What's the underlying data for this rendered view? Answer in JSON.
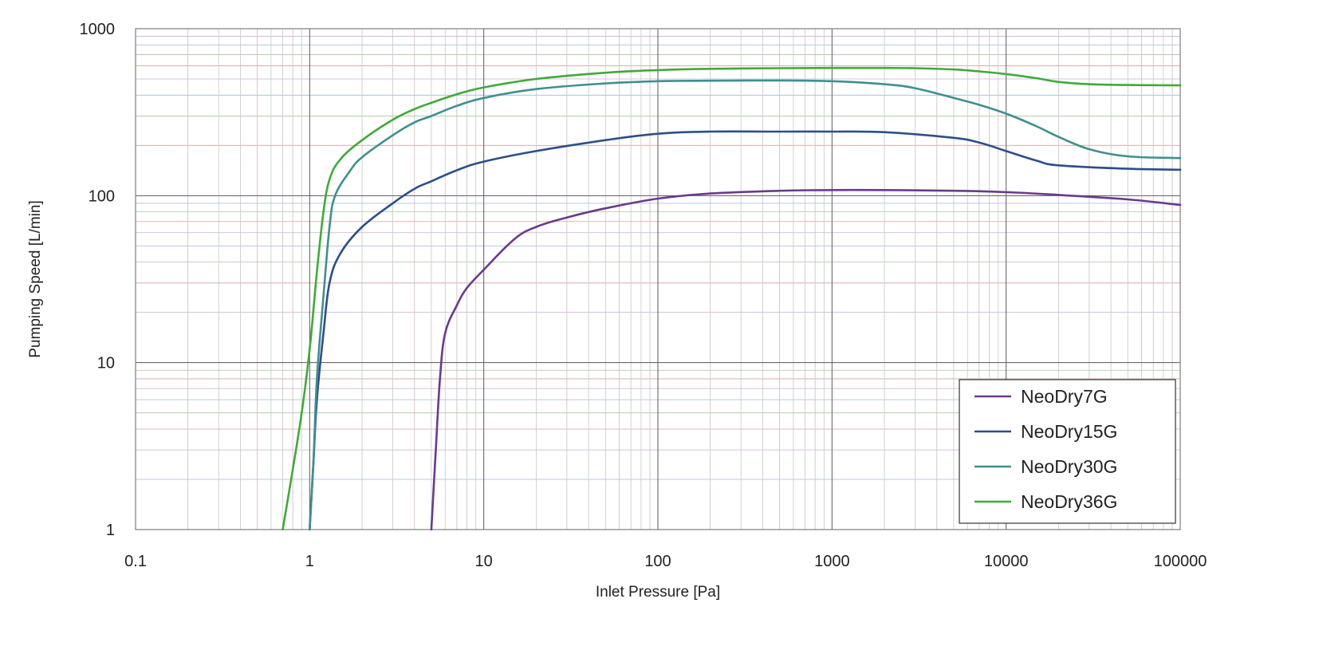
{
  "chart_data": {
    "type": "line",
    "title": "",
    "xlabel": "Inlet Pressure [Pa]",
    "ylabel": "Pumping Speed [L/min]",
    "x_scale": "log",
    "y_scale": "log",
    "xlim": [
      0.1,
      100000
    ],
    "ylim": [
      1,
      1000
    ],
    "x_ticks": [
      "0.1",
      "1",
      "10",
      "100",
      "1000",
      "10000",
      "100000"
    ],
    "y_ticks": [
      "1",
      "10",
      "100",
      "1000"
    ],
    "grid": true,
    "legend_position": "bottom-right",
    "series": [
      {
        "name": "NeoDry7G",
        "color": "#6a3a8c",
        "points": [
          [
            5,
            1
          ],
          [
            5.3,
            3
          ],
          [
            5.6,
            8
          ],
          [
            6,
            15
          ],
          [
            7,
            22
          ],
          [
            8,
            28
          ],
          [
            10,
            36
          ],
          [
            15,
            55
          ],
          [
            20,
            65
          ],
          [
            30,
            74
          ],
          [
            50,
            84
          ],
          [
            100,
            96
          ],
          [
            200,
            103
          ],
          [
            500,
            107
          ],
          [
            1000,
            108
          ],
          [
            2000,
            108
          ],
          [
            5000,
            107
          ],
          [
            10000,
            105
          ],
          [
            20000,
            101
          ],
          [
            50000,
            95
          ],
          [
            100000,
            88
          ]
        ]
      },
      {
        "name": "NeoDry15G",
        "color": "#2d4e8c",
        "points": [
          [
            1,
            1
          ],
          [
            1.05,
            2.5
          ],
          [
            1.1,
            6
          ],
          [
            1.2,
            15
          ],
          [
            1.3,
            30
          ],
          [
            1.5,
            45
          ],
          [
            2,
            65
          ],
          [
            3,
            90
          ],
          [
            4,
            110
          ],
          [
            5,
            122
          ],
          [
            7,
            142
          ],
          [
            10,
            160
          ],
          [
            20,
            185
          ],
          [
            50,
            215
          ],
          [
            100,
            235
          ],
          [
            200,
            242
          ],
          [
            500,
            242
          ],
          [
            1000,
            242
          ],
          [
            2000,
            240
          ],
          [
            5000,
            222
          ],
          [
            7000,
            208
          ],
          [
            10000,
            185
          ],
          [
            15000,
            162
          ],
          [
            20000,
            152
          ],
          [
            50000,
            145
          ],
          [
            100000,
            143
          ]
        ]
      },
      {
        "name": "NeoDry30G",
        "color": "#3f8f8f",
        "points": [
          [
            1,
            1
          ],
          [
            1.05,
            2.5
          ],
          [
            1.1,
            8
          ],
          [
            1.2,
            25
          ],
          [
            1.3,
            65
          ],
          [
            1.4,
            100
          ],
          [
            1.7,
            140
          ],
          [
            2,
            170
          ],
          [
            3,
            230
          ],
          [
            4,
            275
          ],
          [
            5,
            300
          ],
          [
            7,
            345
          ],
          [
            10,
            385
          ],
          [
            20,
            435
          ],
          [
            50,
            470
          ],
          [
            100,
            485
          ],
          [
            200,
            488
          ],
          [
            500,
            490
          ],
          [
            1000,
            485
          ],
          [
            2000,
            465
          ],
          [
            3000,
            440
          ],
          [
            5000,
            385
          ],
          [
            7000,
            350
          ],
          [
            10000,
            310
          ],
          [
            15000,
            260
          ],
          [
            20000,
            225
          ],
          [
            30000,
            190
          ],
          [
            50000,
            172
          ],
          [
            100000,
            168
          ]
        ]
      },
      {
        "name": "NeoDry36G",
        "color": "#3faa3a",
        "points": [
          [
            0.7,
            1
          ],
          [
            0.8,
            2.3
          ],
          [
            0.9,
            5
          ],
          [
            1,
            12
          ],
          [
            1.1,
            35
          ],
          [
            1.2,
            80
          ],
          [
            1.3,
            125
          ],
          [
            1.5,
            165
          ],
          [
            2,
            215
          ],
          [
            3,
            285
          ],
          [
            4,
            330
          ],
          [
            5,
            360
          ],
          [
            7,
            405
          ],
          [
            10,
            445
          ],
          [
            20,
            500
          ],
          [
            50,
            545
          ],
          [
            100,
            565
          ],
          [
            200,
            575
          ],
          [
            500,
            580
          ],
          [
            1000,
            582
          ],
          [
            2000,
            582
          ],
          [
            3000,
            580
          ],
          [
            5000,
            570
          ],
          [
            7000,
            555
          ],
          [
            10000,
            535
          ],
          [
            15000,
            505
          ],
          [
            20000,
            480
          ],
          [
            30000,
            465
          ],
          [
            50000,
            460
          ],
          [
            100000,
            458
          ]
        ]
      }
    ]
  }
}
